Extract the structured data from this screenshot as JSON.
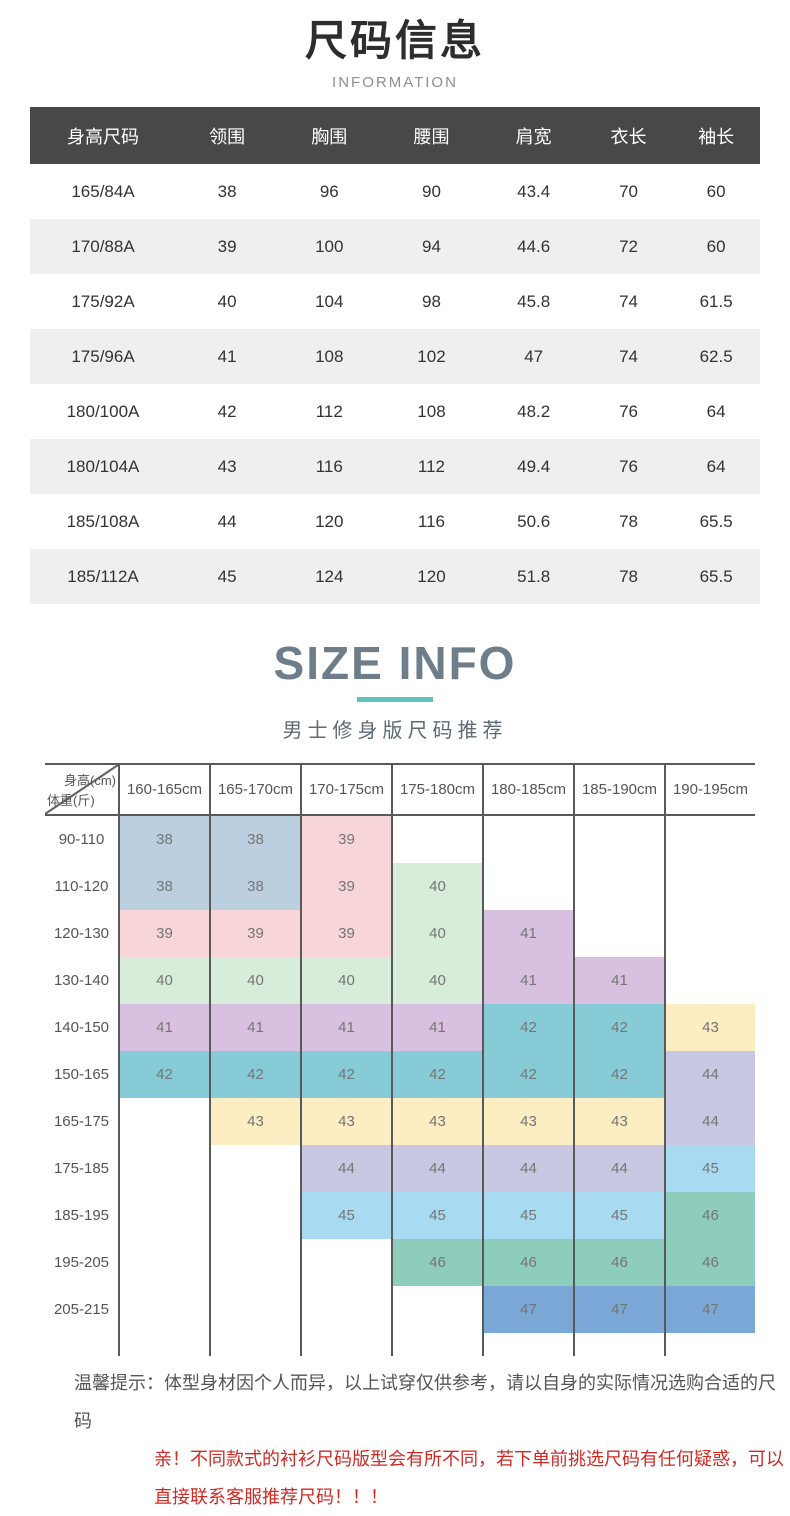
{
  "header": {
    "title": "尺码信息",
    "subtitle": "INFORMATION"
  },
  "size_table": {
    "header_bg": "#484848",
    "alt_row_bg": "#efefef",
    "columns": [
      "身高尺码",
      "领围",
      "胸围",
      "腰围",
      "肩宽",
      "衣长",
      "袖长"
    ],
    "rows": [
      [
        "165/84A",
        "38",
        "96",
        "90",
        "43.4",
        "70",
        "60"
      ],
      [
        "170/88A",
        "39",
        "100",
        "94",
        "44.6",
        "72",
        "60"
      ],
      [
        "175/92A",
        "40",
        "104",
        "98",
        "45.8",
        "74",
        "61.5"
      ],
      [
        "175/96A",
        "41",
        "108",
        "102",
        "47",
        "74",
        "62.5"
      ],
      [
        "180/100A",
        "42",
        "112",
        "108",
        "48.2",
        "76",
        "64"
      ],
      [
        "180/104A",
        "43",
        "116",
        "112",
        "49.4",
        "76",
        "64"
      ],
      [
        "185/108A",
        "44",
        "120",
        "116",
        "50.6",
        "78",
        "65.5"
      ],
      [
        "185/112A",
        "45",
        "124",
        "120",
        "51.8",
        "78",
        "65.5"
      ]
    ]
  },
  "size_info": {
    "heading": "SIZE INFO",
    "subheading": "男士修身版尺码推荐",
    "accent_color": "#5fc3bc",
    "heading_color": "#6d7e8a"
  },
  "grid": {
    "corner_top": "身高(cm)",
    "corner_bottom": "体重(斤)",
    "line_color": "#595959",
    "columns": [
      "160-165cm",
      "165-170cm",
      "170-175cm",
      "175-180cm",
      "180-185cm",
      "185-190cm",
      "190-195cm"
    ],
    "palette": {
      "38": "#bccfdf",
      "39": "#f7d5d8",
      "40": "#d8edd9",
      "41": "#d8c0e0",
      "42": "#87cbd7",
      "43": "#fdedc3",
      "44": "#c8c8e2",
      "45": "#a8daf2",
      "46": "#8ecdbb",
      "47": "#7ba7d6"
    },
    "rows": [
      {
        "weight": "90-110",
        "cells": [
          "38",
          "38",
          "39",
          "",
          "",
          "",
          ""
        ]
      },
      {
        "weight": "110-120",
        "cells": [
          "38",
          "38",
          "39",
          "40",
          "",
          "",
          ""
        ]
      },
      {
        "weight": "120-130",
        "cells": [
          "39",
          "39",
          "39",
          "40",
          "41",
          "",
          ""
        ]
      },
      {
        "weight": "130-140",
        "cells": [
          "40",
          "40",
          "40",
          "40",
          "41",
          "41",
          ""
        ]
      },
      {
        "weight": "140-150",
        "cells": [
          "41",
          "41",
          "41",
          "41",
          "42",
          "42",
          "43"
        ]
      },
      {
        "weight": "150-165",
        "cells": [
          "42",
          "42",
          "42",
          "42",
          "42",
          "42",
          "44"
        ]
      },
      {
        "weight": "165-175",
        "cells": [
          "",
          "43",
          "43",
          "43",
          "43",
          "43",
          "44"
        ]
      },
      {
        "weight": "175-185",
        "cells": [
          "",
          "",
          "44",
          "44",
          "44",
          "44",
          "45"
        ]
      },
      {
        "weight": "185-195",
        "cells": [
          "",
          "",
          "45",
          "45",
          "45",
          "45",
          "46"
        ]
      },
      {
        "weight": "195-205",
        "cells": [
          "",
          "",
          "",
          "46",
          "46",
          "46",
          "46"
        ]
      },
      {
        "weight": "205-215",
        "cells": [
          "",
          "",
          "",
          "",
          "47",
          "47",
          "47"
        ]
      }
    ]
  },
  "notes": {
    "label": "温馨提示：",
    "line1": "体型身材因个人而异，以上试穿仅供参考，请以自身的实际情况选购合适的尺码",
    "line2": "亲！不同款式的衬衫尺码版型会有所不同，若下单前挑选尺码有任何疑惑，可以",
    "line3": "直接联系客服推荐尺码！！！",
    "warn_color": "#d02a24"
  }
}
